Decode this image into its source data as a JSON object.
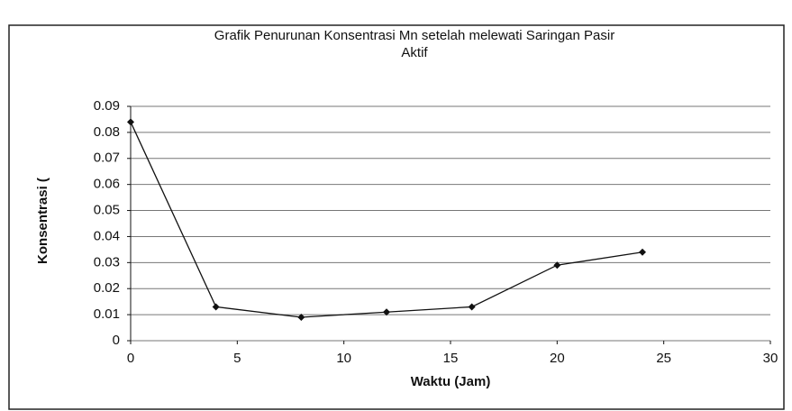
{
  "chart_data": {
    "type": "line",
    "title": [
      "Grafik Penurunan Konsentrasi Mn setelah melewati Saringan Pasir",
      "Aktif"
    ],
    "x_label": "Waktu (Jam)",
    "y_label": "Konsentrasi (",
    "x": [
      0,
      4,
      8,
      12,
      16,
      20,
      24
    ],
    "series": [
      {
        "color": "#111111",
        "values": [
          0.084,
          0.013,
          0.009,
          0.011,
          0.013,
          0.029,
          0.034
        ]
      }
    ],
    "xlim": [
      0,
      30
    ],
    "xticks": [
      0,
      5,
      10,
      15,
      20,
      25,
      30
    ],
    "ylim": [
      0,
      0.09
    ],
    "yticks": [
      0,
      0.01,
      0.02,
      0.03,
      0.04,
      0.05,
      0.06,
      0.07,
      0.08,
      0.09
    ],
    "grid": true
  }
}
